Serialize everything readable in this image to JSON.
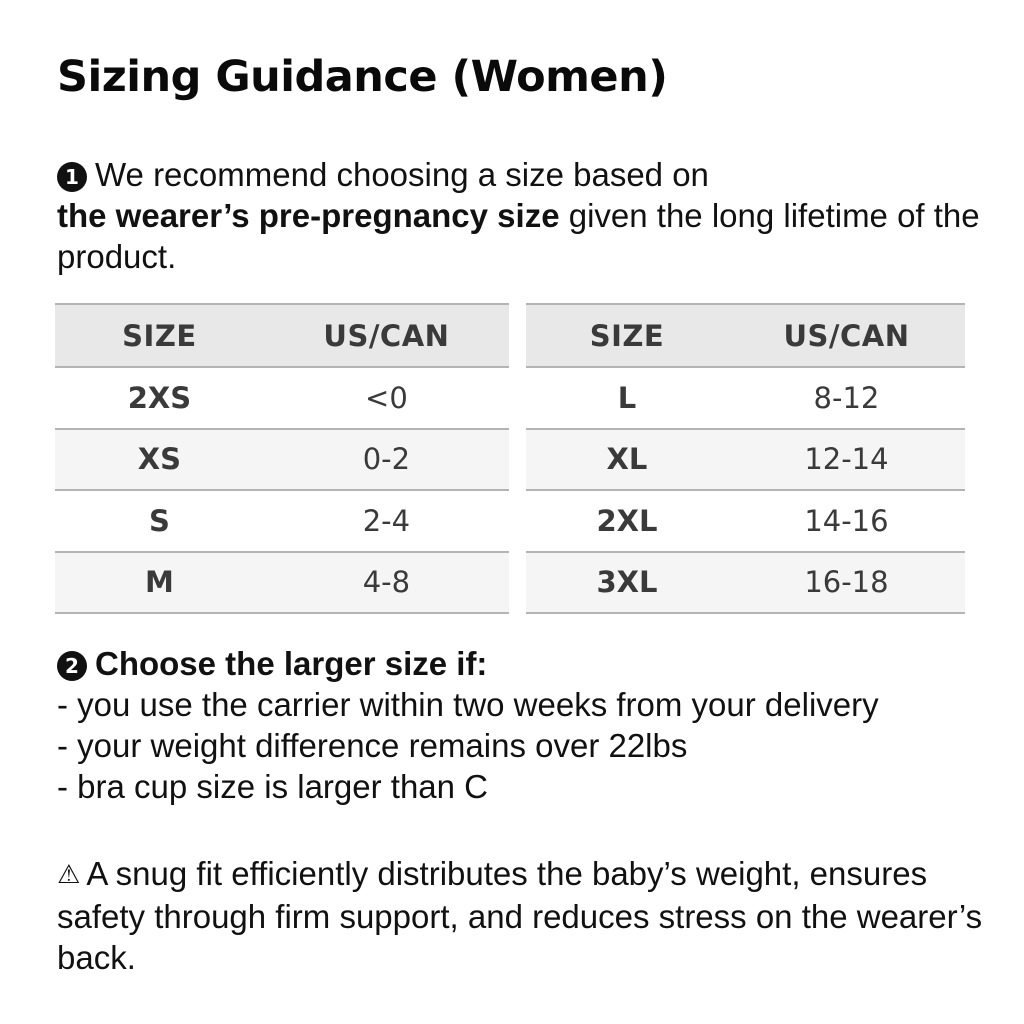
{
  "title": "Sizing Guidance (Women)",
  "section1": {
    "badge": "1",
    "text_before": "We recommend choosing a size based on",
    "bold": "the wearer’s pre-pregnancy size",
    "text_after": "given the long lifetime of the product."
  },
  "tables": {
    "headers": {
      "size": "SIZE",
      "region": "US/CAN"
    },
    "left": [
      {
        "size": "2XS",
        "us_can": "<0"
      },
      {
        "size": "XS",
        "us_can": "0-2"
      },
      {
        "size": "S",
        "us_can": "2-4"
      },
      {
        "size": "M",
        "us_can": "4-8"
      }
    ],
    "right": [
      {
        "size": "L",
        "us_can": "8-12"
      },
      {
        "size": "XL",
        "us_can": "12-14"
      },
      {
        "size": "2XL",
        "us_can": "14-16"
      },
      {
        "size": "3XL",
        "us_can": "16-18"
      }
    ]
  },
  "section2": {
    "badge": "2",
    "heading": "Choose the larger size if:",
    "items": [
      "- you use the carrier within two weeks from your delivery",
      "- your weight difference remains over 22lbs",
      "- bra cup size is larger than C"
    ]
  },
  "warning": {
    "icon": "⚠",
    "text": "A snug fit efficiently distributes the baby’s weight, ensures safety through firm support, and reduces stress on the wearer’s back."
  },
  "colors": {
    "header_bg": "#e8e8e8",
    "alt_row_bg": "#f5f5f5",
    "border": "#b4b4b4",
    "table_text": "#3a3a3a"
  }
}
